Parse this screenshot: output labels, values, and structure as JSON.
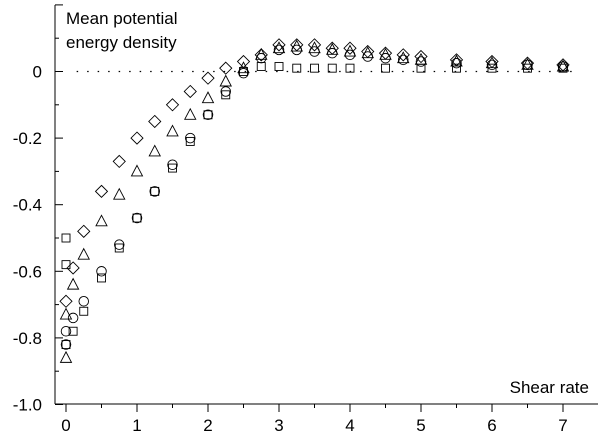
{
  "chart_data": {
    "type": "scatter",
    "title": "",
    "ylabel_line1": "Mean potential",
    "ylabel_line2": "energy density",
    "xlabel": "Shear rate",
    "xlim": [
      -0.15,
      7.5
    ],
    "ylim": [
      -1.0,
      0.2
    ],
    "x_ticks": [
      0,
      1,
      2,
      3,
      4,
      5,
      6,
      7
    ],
    "x_tick_labels": [
      "0",
      "1",
      "2",
      "3",
      "4",
      "5",
      "6",
      "7"
    ],
    "y_ticks": [
      0,
      -0.2,
      -0.4,
      -0.6,
      -0.8,
      -1.0
    ],
    "y_tick_labels": [
      "0",
      "-0.2",
      "-0.4",
      "-0.6",
      "-0.8",
      "-1.0"
    ],
    "reference_line_y": 0,
    "grid": false,
    "legend": "none",
    "series": [
      {
        "marker": "diamond",
        "points": [
          [
            0,
            -0.69
          ],
          [
            0.1,
            -0.59
          ],
          [
            0.25,
            -0.48
          ],
          [
            0.5,
            -0.36
          ],
          [
            0.75,
            -0.27
          ],
          [
            1.0,
            -0.2
          ],
          [
            1.25,
            -0.15
          ],
          [
            1.5,
            -0.1
          ],
          [
            1.75,
            -0.06
          ],
          [
            2.0,
            -0.02
          ],
          [
            2.25,
            0.01
          ],
          [
            2.5,
            0.03
          ],
          [
            2.75,
            0.05
          ],
          [
            3.0,
            0.08
          ],
          [
            3.25,
            0.08
          ],
          [
            3.5,
            0.08
          ],
          [
            3.75,
            0.07
          ],
          [
            4.0,
            0.07
          ],
          [
            4.25,
            0.06
          ],
          [
            4.5,
            0.055
          ],
          [
            4.75,
            0.05
          ],
          [
            5.0,
            0.045
          ],
          [
            5.5,
            0.035
          ],
          [
            6.0,
            0.03
          ],
          [
            6.5,
            0.025
          ],
          [
            7.0,
            0.02
          ]
        ]
      },
      {
        "marker": "triangle",
        "points": [
          [
            0,
            -0.86
          ],
          [
            0,
            -0.73
          ],
          [
            0.1,
            -0.64
          ],
          [
            0.25,
            -0.55
          ],
          [
            0.5,
            -0.45
          ],
          [
            0.75,
            -0.37
          ],
          [
            1.0,
            -0.3
          ],
          [
            1.25,
            -0.24
          ],
          [
            1.5,
            -0.18
          ],
          [
            1.75,
            -0.13
          ],
          [
            2.0,
            -0.08
          ],
          [
            2.25,
            -0.03
          ],
          [
            2.5,
            0.01
          ],
          [
            2.75,
            0.05
          ],
          [
            3.0,
            0.07
          ],
          [
            3.25,
            0.075
          ],
          [
            3.5,
            0.07
          ],
          [
            3.75,
            0.065
          ],
          [
            4.0,
            0.06
          ],
          [
            4.25,
            0.055
          ],
          [
            4.5,
            0.05
          ],
          [
            4.75,
            0.04
          ],
          [
            5.0,
            0.035
          ],
          [
            5.5,
            0.03
          ],
          [
            6.0,
            0.025
          ],
          [
            6.5,
            0.02
          ],
          [
            7.0,
            0.015
          ]
        ]
      },
      {
        "marker": "circle",
        "points": [
          [
            0,
            -0.82
          ],
          [
            0,
            -0.78
          ],
          [
            0.1,
            -0.74
          ],
          [
            0.25,
            -0.69
          ],
          [
            0.5,
            -0.6
          ],
          [
            0.75,
            -0.52
          ],
          [
            1.0,
            -0.44
          ],
          [
            1.25,
            -0.36
          ],
          [
            1.5,
            -0.28
          ],
          [
            1.75,
            -0.2
          ],
          [
            2.0,
            -0.13
          ],
          [
            2.25,
            -0.06
          ],
          [
            2.5,
            -0.005
          ],
          [
            2.75,
            0.04
          ],
          [
            3.0,
            0.065
          ],
          [
            3.25,
            0.065
          ],
          [
            3.5,
            0.06
          ],
          [
            3.75,
            0.055
          ],
          [
            4.0,
            0.05
          ],
          [
            4.25,
            0.045
          ],
          [
            4.5,
            0.04
          ],
          [
            4.75,
            0.035
          ],
          [
            5.0,
            0.03
          ],
          [
            5.5,
            0.025
          ],
          [
            6.0,
            0.02
          ],
          [
            6.5,
            0.02
          ],
          [
            7.0,
            0.015
          ]
        ]
      },
      {
        "marker": "square",
        "points": [
          [
            0,
            -0.5
          ],
          [
            0,
            -0.58
          ],
          [
            0.1,
            -0.78
          ],
          [
            0,
            -0.82
          ],
          [
            0.25,
            -0.72
          ],
          [
            0.5,
            -0.62
          ],
          [
            0.75,
            -0.53
          ],
          [
            1.0,
            -0.44
          ],
          [
            1.25,
            -0.36
          ],
          [
            1.5,
            -0.29
          ],
          [
            1.75,
            -0.21
          ],
          [
            2.0,
            -0.13
          ],
          [
            2.25,
            -0.07
          ],
          [
            2.5,
            0.0
          ],
          [
            2.75,
            0.015
          ],
          [
            3.0,
            0.015
          ],
          [
            3.25,
            0.01
          ],
          [
            3.5,
            0.01
          ],
          [
            3.75,
            0.01
          ],
          [
            4.0,
            0.01
          ],
          [
            4.5,
            0.01
          ],
          [
            5.0,
            0.01
          ],
          [
            5.5,
            0.01
          ],
          [
            6.0,
            0.01
          ],
          [
            6.5,
            0.01
          ],
          [
            7.0,
            0.01
          ]
        ]
      }
    ]
  }
}
